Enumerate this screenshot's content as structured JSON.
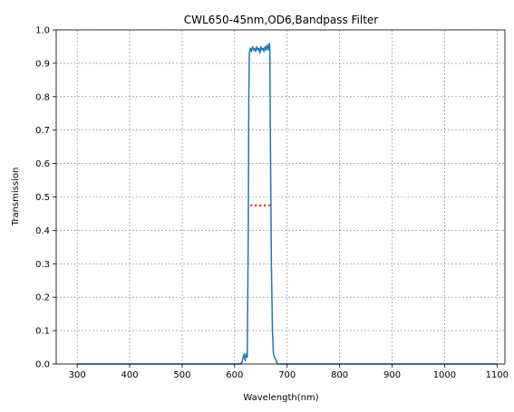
{
  "chart_data": {
    "type": "line",
    "title": "CWL650-45nm,OD6,Bandpass Filter",
    "xlabel": "Wavelength(nm)",
    "ylabel": "Transmission",
    "xlim": [
      260,
      1115
    ],
    "ylim": [
      0,
      1.0
    ],
    "xticks": [
      300,
      400,
      500,
      600,
      700,
      800,
      900,
      1000,
      1100
    ],
    "yticks": [
      0.0,
      0.1,
      0.2,
      0.3,
      0.4,
      0.5,
      0.6,
      0.7,
      0.8,
      0.9,
      1.0
    ],
    "grid": true,
    "series": [
      {
        "color": "#1f77b4",
        "style": "solid",
        "x": [
          300,
          600,
          610,
          614,
          616,
          618,
          620,
          622,
          624,
          626,
          627,
          628,
          629,
          630,
          632,
          634,
          636,
          638,
          640,
          642,
          644,
          646,
          648,
          650,
          652,
          654,
          656,
          658,
          660,
          662,
          664,
          666,
          667,
          668,
          670,
          672,
          674,
          676,
          678,
          680,
          682,
          684,
          690,
          700,
          800,
          900,
          1000,
          1100
        ],
        "y": [
          0.0,
          0.0,
          0.0,
          0.005,
          0.02,
          0.03,
          0.01,
          0.03,
          0.02,
          0.4,
          0.8,
          0.93,
          0.94,
          0.945,
          0.935,
          0.95,
          0.94,
          0.945,
          0.935,
          0.95,
          0.94,
          0.945,
          0.93,
          0.95,
          0.94,
          0.945,
          0.935,
          0.95,
          0.94,
          0.955,
          0.94,
          0.96,
          0.95,
          0.7,
          0.3,
          0.1,
          0.03,
          0.02,
          0.015,
          0.005,
          0.0,
          0.0,
          0.0,
          0.0,
          0.0,
          0.0,
          0.0,
          0.0
        ]
      },
      {
        "color": "#ff0000",
        "style": "dotted",
        "x": [
          630,
          670
        ],
        "y": [
          0.475,
          0.475
        ]
      }
    ]
  }
}
